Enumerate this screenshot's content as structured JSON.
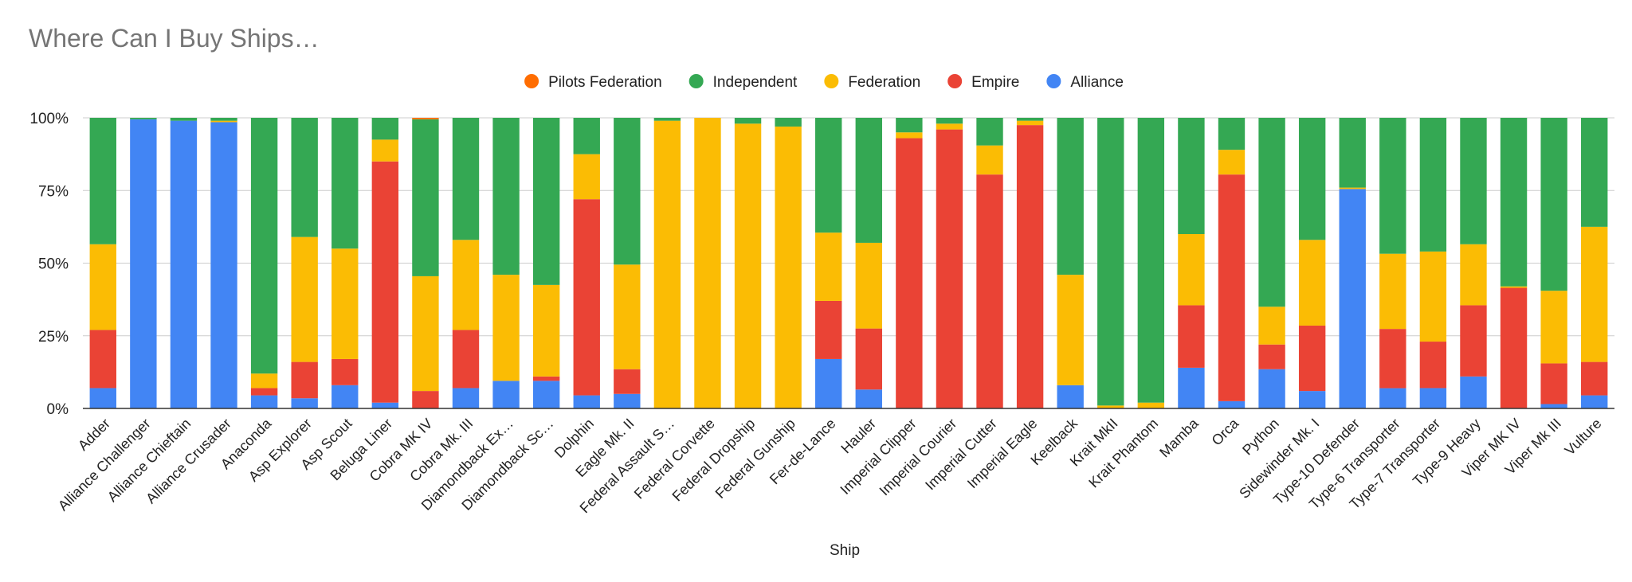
{
  "chart_data": {
    "type": "bar",
    "stacked": "percent",
    "title": "Where Can I Buy Ships…",
    "xlabel": "Ship",
    "ylabel": "",
    "ylim": [
      0,
      100
    ],
    "y_ticks": [
      "0%",
      "25%",
      "50%",
      "75%",
      "100%"
    ],
    "grid": true,
    "legend_position": "top",
    "categories": [
      "Adder",
      "Alliance Challenger",
      "Alliance Chieftain",
      "Alliance Crusader",
      "Anaconda",
      "Asp Explorer",
      "Asp Scout",
      "Beluga Liner",
      "Cobra MK IV",
      "Cobra Mk. III",
      "Diamondback Ex…",
      "Diamondback Sc…",
      "Dolphin",
      "Eagle Mk. II",
      "Federal Assault S…",
      "Federal Corvette",
      "Federal Dropship",
      "Federal Gunship",
      "Fer-de-Lance",
      "Hauler",
      "Imperial Clipper",
      "Imperial Courier",
      "Imperial Cutter",
      "Imperial Eagle",
      "Keelback",
      "Krait MkII",
      "Krait Phantom",
      "Mamba",
      "Orca",
      "Python",
      "Sidewinder Mk. I",
      "Type-10 Defender",
      "Type-6 Transporter",
      "Type-7 Transporter",
      "Type-9 Heavy",
      "Viper MK IV",
      "Viper Mk III",
      "Vulture"
    ],
    "series": [
      {
        "name": "Alliance",
        "color": "#4285f4",
        "values": [
          7,
          99.5,
          99,
          98.5,
          4.5,
          3.5,
          8,
          2,
          0,
          7,
          9.5,
          9.5,
          4.5,
          5,
          0,
          0,
          0,
          0,
          17,
          6.5,
          0,
          0,
          0,
          0,
          8,
          0,
          0,
          14,
          2.5,
          13.5,
          6,
          75.5,
          7,
          7,
          11,
          0,
          1.5,
          4.5
        ]
      },
      {
        "name": "Empire",
        "color": "#ea4335",
        "values": [
          20,
          0,
          0,
          0,
          2.5,
          12.5,
          9,
          83,
          6,
          20,
          0,
          1.5,
          67.5,
          8.5,
          0,
          0,
          0,
          0,
          20,
          21,
          93,
          96,
          80.5,
          97.5,
          0,
          0,
          0,
          21.5,
          78,
          8.5,
          22.5,
          0,
          20.5,
          16,
          24.5,
          41.5,
          14,
          11.5
        ]
      },
      {
        "name": "Federation",
        "color": "#fbbc04",
        "values": [
          29.5,
          0,
          0,
          0.5,
          5,
          43,
          38,
          7.5,
          39.5,
          31,
          36.5,
          31.5,
          15.5,
          36,
          99,
          100,
          98,
          97,
          23.5,
          29.5,
          2,
          2,
          10,
          1.5,
          38,
          1,
          2,
          24.5,
          8.5,
          13,
          29.5,
          0.5,
          26,
          31,
          21,
          0.5,
          25,
          46.5
        ]
      },
      {
        "name": "Independent",
        "color": "#34a853",
        "values": [
          43.5,
          0.5,
          1,
          1,
          88,
          41,
          45,
          7.5,
          54,
          42,
          54,
          57.5,
          12.5,
          50.5,
          1,
          0,
          2,
          3,
          39.5,
          43,
          5,
          2,
          9.5,
          1,
          54,
          99,
          98,
          40,
          11,
          65,
          42,
          24,
          47,
          46,
          43.5,
          58,
          59.5,
          37.5
        ]
      },
      {
        "name": "Pilots Federation",
        "color": "#ff6d01",
        "values": [
          0,
          0,
          0,
          0,
          0,
          0,
          0,
          0,
          0.5,
          0,
          0,
          0,
          0,
          0,
          0,
          0,
          0,
          0,
          0,
          0,
          0,
          0,
          0,
          0,
          0,
          0,
          0,
          0,
          0,
          0,
          0,
          0,
          0,
          0,
          0,
          0,
          0,
          0
        ]
      }
    ],
    "legend_order": [
      "Pilots Federation",
      "Independent",
      "Federation",
      "Empire",
      "Alliance"
    ]
  }
}
